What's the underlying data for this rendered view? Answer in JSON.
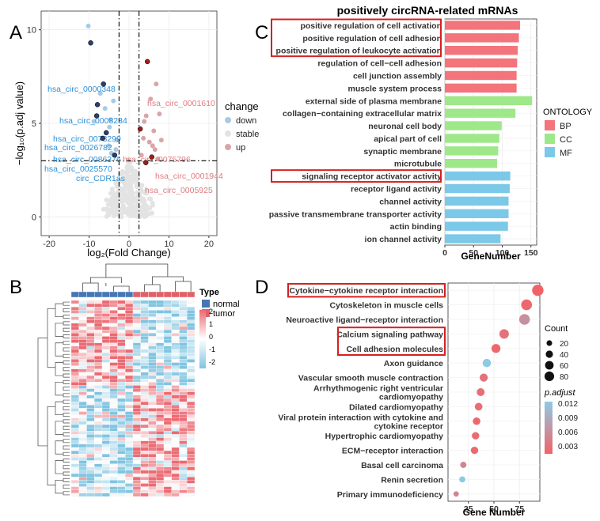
{
  "panels": {
    "a": "A",
    "b": "B",
    "c": "C",
    "d": "D"
  },
  "chart_data": [
    {
      "type": "scatter",
      "panel": "A",
      "xlabel": "log₂(Fold Change)",
      "ylabel": "−log₁₀(p.adj value)",
      "xlim": [
        -22,
        22
      ],
      "ylim": [
        -1,
        11
      ],
      "xticks": [
        "-20",
        "-10",
        "0",
        "10",
        "20"
      ],
      "yticks": [
        "0",
        "5",
        "10"
      ],
      "x_thresholds": [
        -2.5,
        2.5
      ],
      "y_threshold": 3,
      "legend_title": "change",
      "legend": [
        {
          "name": "down",
          "color": "#a6cbe8"
        },
        {
          "name": "stable",
          "color": "#e3e3e3"
        },
        {
          "name": "up",
          "color": "#dca4a8"
        }
      ],
      "labels": [
        {
          "text": "hsa_circ_0000348",
          "x": -9.6,
          "y": 9.3,
          "dir": "down"
        },
        {
          "text": "hsa_circ_0008234",
          "x": -6.4,
          "y": 7.1,
          "dir": "down"
        },
        {
          "text": "hsa_circ_0078299",
          "x": -7.9,
          "y": 6.0,
          "dir": "down"
        },
        {
          "text": "hsa_circ_0026782",
          "x": -8.1,
          "y": 5.4,
          "dir": "down"
        },
        {
          "text": "hsa_circ_0086376",
          "x": -5.7,
          "y": 4.5,
          "dir": "down"
        },
        {
          "text": "hsa_circ_0025570",
          "x": -6.6,
          "y": 4.2,
          "dir": "down"
        },
        {
          "text": "circ_CDR1as",
          "x": -3.6,
          "y": 3.3,
          "dir": "down"
        },
        {
          "text": "hsa_circ_0075796",
          "x": 2.8,
          "y": 4.7,
          "dir": "up"
        },
        {
          "text": "hsa_circ_0001610",
          "x": 4.6,
          "y": 8.3,
          "dir": "up"
        },
        {
          "text": "hsa_circ_0001944",
          "x": 5.7,
          "y": 3.2,
          "dir": "up"
        },
        {
          "text": "hsa_circ_0005925",
          "x": 4.2,
          "y": 2.9,
          "dir": "up"
        }
      ],
      "down_points": [
        [
          -10.2,
          10.2
        ],
        [
          -9.6,
          9.3
        ],
        [
          -6.4,
          7.1
        ],
        [
          -7.9,
          6.0
        ],
        [
          -8.1,
          5.4
        ],
        [
          -5.7,
          4.5
        ],
        [
          -6.6,
          4.2
        ],
        [
          -3.6,
          3.3
        ],
        [
          -4.6,
          5.2
        ],
        [
          -3.9,
          6.2
        ],
        [
          -7.2,
          6.6
        ],
        [
          -5.1,
          3.8
        ],
        [
          -4.4,
          3.4
        ],
        [
          -6.0,
          5.8
        ],
        [
          -3.0,
          4.1
        ],
        [
          -8.8,
          5.1
        ],
        [
          -4.9,
          4.8
        ],
        [
          -3.3,
          3.6
        ]
      ],
      "up_points": [
        [
          4.6,
          8.3
        ],
        [
          6.8,
          7.1
        ],
        [
          5.4,
          6.3
        ],
        [
          7.6,
          5.5
        ],
        [
          4.3,
          5.4
        ],
        [
          2.8,
          4.7
        ],
        [
          3.6,
          4.2
        ],
        [
          8.1,
          4.1
        ],
        [
          5.1,
          4.0
        ],
        [
          5.9,
          3.8
        ],
        [
          6.5,
          3.6
        ],
        [
          5.7,
          3.2
        ],
        [
          4.2,
          2.9
        ],
        [
          7.2,
          3.1
        ],
        [
          3.1,
          3.3
        ],
        [
          6.2,
          4.6
        ],
        [
          3.8,
          5.1
        ]
      ],
      "stable_region": {
        "x_range": [
          -6.5,
          6.5
        ],
        "y_range": [
          0,
          3.2
        ]
      }
    },
    {
      "type": "heatmap",
      "panel": "B",
      "legend_title": "Type",
      "groups": [
        {
          "name": "normal",
          "color": "#4677b5"
        },
        {
          "name": "tumor",
          "color": "#e0616a"
        }
      ],
      "samples_per_group": 8,
      "rows": 60,
      "color_scale": {
        "ticks": [
          "2",
          "1",
          "0",
          "-1",
          "-2"
        ],
        "high": "#eb6a72",
        "mid": "#ffffff",
        "low": "#7fc4e0"
      }
    },
    {
      "type": "bar",
      "panel": "C",
      "title": "positively circRNA-related mRNAs",
      "xlabel": "GeneNumber",
      "xlim": [
        0,
        160
      ],
      "xticks": [
        "0",
        "50",
        "100",
        "150"
      ],
      "legend_title": "ONTOLOGY",
      "legend": [
        {
          "name": "BP",
          "color": "#f4747b"
        },
        {
          "name": "CC",
          "color": "#9ee88a"
        },
        {
          "name": "MF",
          "color": "#7cc8e8"
        }
      ],
      "categories": [
        "positive regulation of cell activation",
        "positive regulation of cell adhesion",
        "positive regulation of leukocyte activation",
        "regulation of cell−cell adhesion",
        "cell junction assembly",
        "muscle system process",
        "external side of plasma membrane",
        "collagen−containing extracellular matrix",
        "neuronal cell body",
        "apical part of cell",
        "synaptic membrane",
        "microtubule",
        "signaling receptor activator activity",
        "receptor ligand activity",
        "channel activity",
        "passive transmembrane transporter activity",
        "actin binding",
        "ion channel activity"
      ],
      "ontology": [
        "BP",
        "BP",
        "BP",
        "BP",
        "BP",
        "BP",
        "CC",
        "CC",
        "CC",
        "CC",
        "CC",
        "CC",
        "MF",
        "MF",
        "MF",
        "MF",
        "MF",
        "MF"
      ],
      "values": [
        131,
        129,
        127,
        126,
        125,
        125,
        152,
        123,
        99,
        95,
        93,
        91,
        114,
        113,
        111,
        111,
        110,
        97
      ],
      "highlighted": [
        0,
        1,
        2,
        12
      ]
    },
    {
      "type": "scatter",
      "panel": "D",
      "xlabel": "Gene Number",
      "xlim": [
        5,
        95
      ],
      "xticks": [
        "25",
        "50",
        "75"
      ],
      "categories": [
        "Cytokine−cytokine receptor interaction",
        "Cytoskeleton in muscle cells",
        "Neuroactive ligand−receptor interaction",
        "Calcium signaling pathway",
        "Cell adhesion molecules",
        "Axon guidance",
        "Vascular smooth muscle contraction",
        "Arrhythmogenic right ventricular cardiomyopathy",
        "Dilated cardiomyopathy",
        "Viral protein interaction with cytokine and cytokine receptor",
        "Hypertrophic cardiomyopathy",
        "ECM−receptor interaction",
        "Basal cell carcinoma",
        "Renin secretion",
        "Primary immunodeficiency"
      ],
      "display_labels": [
        [
          "Cytokine−cytokine receptor interaction"
        ],
        [
          "Cytoskeleton in muscle cells"
        ],
        [
          "Neuroactive ligand−receptor interaction"
        ],
        [
          "Calcium signaling pathway"
        ],
        [
          "Cell adhesion molecules"
        ],
        [
          "Axon guidance"
        ],
        [
          "Vascular smooth muscle contraction"
        ],
        [
          "Arrhythmogenic right ventricular",
          "cardiomyopathy"
        ],
        [
          "Dilated cardiomyopathy"
        ],
        [
          "Viral protein interaction with cytokine and",
          "cytokine receptor"
        ],
        [
          "Hypertrophic cardiomyopathy"
        ],
        [
          "ECM−receptor interaction"
        ],
        [
          "Basal cell carcinoma"
        ],
        [
          "Renin secretion"
        ],
        [
          "Primary immunodeficiency"
        ]
      ],
      "gene_number": [
        93,
        82,
        80,
        60,
        52,
        43,
        40,
        37,
        35,
        33,
        32,
        31,
        20,
        19,
        13
      ],
      "p_adjust": [
        0.0015,
        0.002,
        0.006,
        0.003,
        0.002,
        0.012,
        0.003,
        0.0025,
        0.0025,
        0.002,
        0.0025,
        0.002,
        0.005,
        0.012,
        0.005
      ],
      "highlighted": [
        0,
        3,
        4
      ],
      "size_legend_title": "Count",
      "size_legend": [
        20,
        40,
        60,
        80
      ],
      "color_legend_title": "p.adjust",
      "color_legend_ticks": [
        "0.012",
        "0.009",
        "0.006",
        "0.003"
      ],
      "color_low": "#f06468",
      "color_high": "#8ecae6"
    }
  ]
}
